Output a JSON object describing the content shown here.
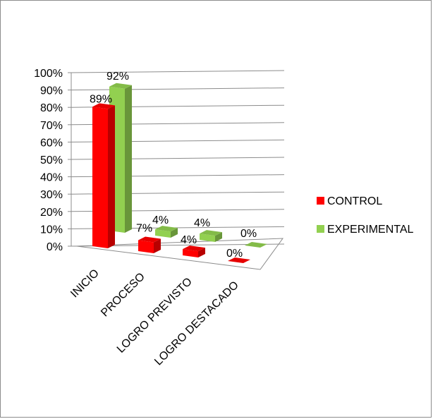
{
  "chart_data": {
    "type": "bar",
    "style": "3d-clustered-column",
    "categories": [
      "INICIO",
      "PROCESO",
      "LOGRO PREVISTO",
      "LOGRO DESTACADO"
    ],
    "series": [
      {
        "name": "CONTROL",
        "values": [
          89,
          7,
          4,
          0
        ],
        "color": "#ff0000"
      },
      {
        "name": "EXPERIMENTAL",
        "values": [
          92,
          4,
          4,
          0
        ],
        "color": "#92d050"
      }
    ],
    "y_ticks": [
      "0%",
      "10%",
      "20%",
      "30%",
      "40%",
      "50%",
      "60%",
      "70%",
      "80%",
      "90%",
      "100%"
    ],
    "data_labels": [
      [
        "89%",
        "7%",
        "4%",
        "0%"
      ],
      [
        "92%",
        "4%",
        "4%",
        "0%"
      ]
    ],
    "ylim": [
      0,
      100
    ],
    "grid": true,
    "legend_position": "right"
  }
}
